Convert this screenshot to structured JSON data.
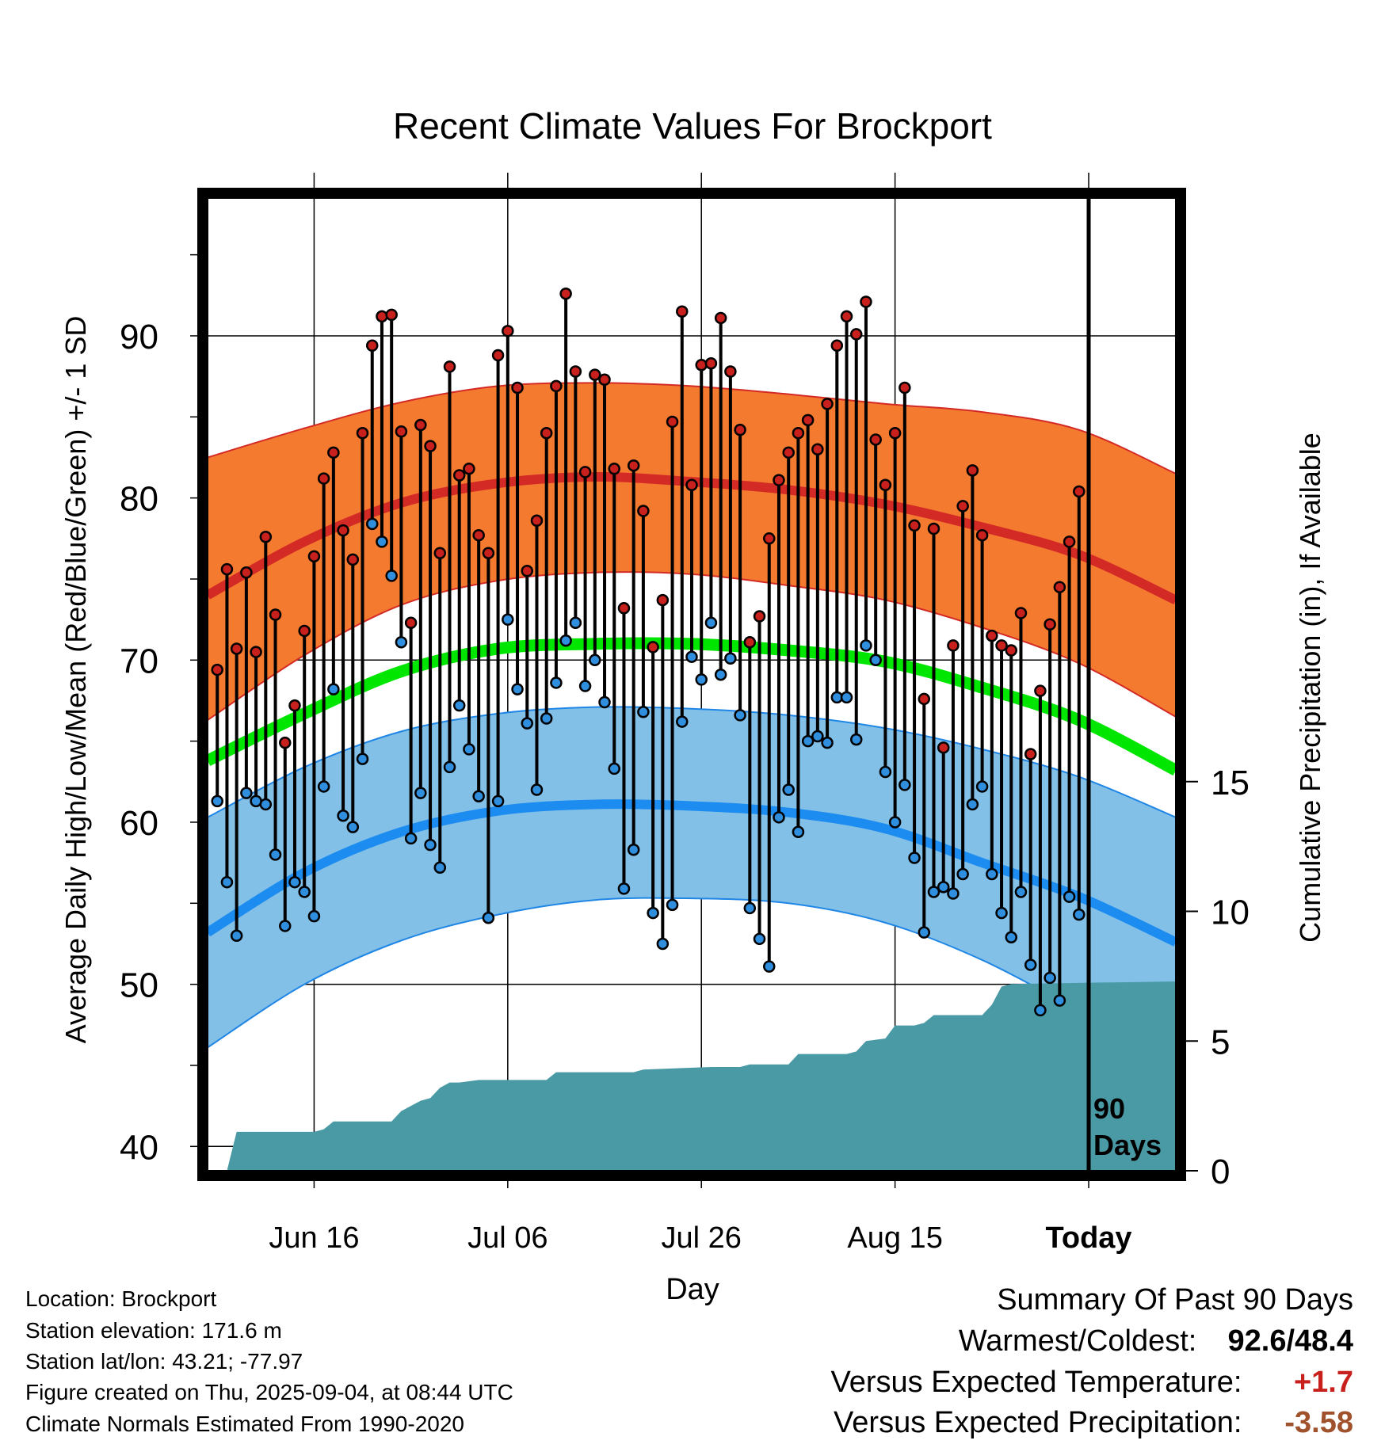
{
  "chart_data": {
    "type": "line",
    "title": "Recent Climate Values For Brockport",
    "xlabel": "Day",
    "ylabel": "Average Daily High/Low/Mean (Red/Blue/Green) +/- 1 SD",
    "ylabel_right": "Cumulative Precipitation (in), If Available",
    "ylim": [
      38.5,
      98.5
    ],
    "ylim_right": [
      0,
      37.5
    ],
    "yticks": [
      "40",
      "50",
      "60",
      "70",
      "80",
      "90"
    ],
    "yticks_right": [
      "0",
      "5",
      "10",
      "15"
    ],
    "xticks": [
      "Jun 16",
      "Jul 06",
      "Jul 26",
      "Aug 15",
      "Today"
    ],
    "xtick_days": [
      11,
      31,
      51,
      71,
      91
    ],
    "xlim": [
      0,
      100
    ],
    "today_marker": "90\nDays",
    "grid": true,
    "days": 90,
    "normals": {
      "day": [
        0,
        10,
        20,
        30,
        40,
        50,
        60,
        70,
        80,
        90,
        100
      ],
      "high": [
        74.0,
        77.3,
        79.7,
        80.9,
        81.3,
        81.0,
        80.5,
        79.6,
        78.2,
        76.5,
        73.7
      ],
      "high_upper": [
        82.5,
        84.3,
        85.9,
        86.9,
        87.1,
        86.9,
        86.4,
        85.8,
        85.3,
        84.2,
        81.5
      ],
      "high_lower": [
        66.3,
        70.3,
        73.4,
        74.9,
        75.4,
        75.3,
        74.6,
        73.7,
        72.0,
        69.8,
        66.5
      ],
      "mean": [
        63.8,
        66.7,
        69.3,
        70.7,
        71.0,
        71.0,
        70.6,
        69.9,
        68.3,
        66.3,
        63.2
      ],
      "low": [
        53.2,
        56.9,
        59.4,
        60.7,
        61.1,
        61.0,
        60.6,
        59.6,
        57.5,
        55.4,
        52.6
      ],
      "low_upper": [
        60.3,
        63.4,
        65.6,
        66.7,
        67.1,
        67.0,
        66.6,
        65.8,
        64.5,
        62.8,
        60.3
      ],
      "low_lower": [
        46.1,
        50.0,
        52.7,
        54.3,
        55.2,
        55.3,
        55.0,
        53.8,
        51.5,
        48.4,
        45.5
      ]
    },
    "series": [
      {
        "name": "High",
        "color": "#c8201c",
        "values": [
          69.4,
          75.6,
          70.7,
          75.4,
          70.5,
          77.6,
          72.8,
          64.9,
          67.2,
          71.8,
          76.4,
          81.2,
          82.8,
          78.0,
          76.2,
          84.0,
          89.4,
          91.2,
          91.3,
          84.1,
          72.3,
          84.5,
          83.2,
          76.6,
          88.1,
          81.4,
          81.8,
          77.7,
          76.6,
          88.8,
          90.3,
          86.8,
          75.5,
          78.6,
          84.0,
          86.9,
          92.6,
          87.8,
          81.6,
          87.6,
          87.3,
          81.8,
          73.2,
          82.0,
          79.2,
          70.8,
          73.7,
          84.7,
          91.5,
          80.8,
          88.2,
          88.3,
          91.1,
          87.8,
          84.2,
          71.1,
          72.7,
          77.5,
          81.1,
          82.8,
          84.0,
          84.8,
          83.0,
          85.8,
          89.4,
          91.2,
          90.1,
          92.1,
          83.6,
          80.8,
          84.0,
          86.8,
          78.3,
          67.6,
          78.1,
          64.6,
          70.9,
          79.5,
          81.7,
          77.7,
          71.5,
          70.9,
          70.6,
          72.9,
          64.2,
          68.1,
          72.2,
          74.5,
          77.3,
          80.4
        ]
      },
      {
        "name": "Low",
        "color": "#2f8fde",
        "values": [
          61.3,
          56.3,
          53.0,
          61.8,
          61.3,
          61.1,
          58.0,
          53.6,
          56.3,
          55.7,
          54.2,
          62.2,
          68.2,
          60.4,
          59.7,
          63.9,
          78.4,
          77.3,
          75.2,
          71.1,
          59.0,
          61.8,
          58.6,
          57.2,
          63.4,
          67.2,
          64.5,
          61.6,
          54.1,
          61.3,
          72.5,
          68.2,
          66.1,
          62.0,
          66.4,
          68.6,
          71.2,
          72.3,
          68.4,
          70.0,
          67.4,
          63.3,
          55.9,
          58.3,
          66.8,
          54.4,
          52.5,
          54.9,
          66.2,
          70.2,
          68.8,
          72.3,
          69.1,
          70.1,
          66.6,
          54.7,
          52.8,
          51.1,
          60.3,
          62.0,
          59.4,
          65.0,
          65.3,
          64.9,
          67.7,
          67.7,
          65.1,
          70.9,
          70.0,
          63.1,
          60.0,
          62.3,
          57.8,
          53.2,
          55.7,
          56.0,
          55.6,
          56.8,
          61.1,
          62.2,
          56.8,
          54.4,
          52.9,
          55.7,
          51.2,
          48.4,
          50.4,
          49.0,
          55.4,
          54.3
        ]
      },
      {
        "name": "Cumulative Precipitation",
        "color": "#4a9aa5",
        "x": [
          0,
          2,
          3,
          11,
          12,
          13,
          19,
          20,
          21,
          22,
          23,
          24,
          25,
          26,
          28,
          30,
          32,
          35,
          36,
          44,
          45,
          52,
          55,
          56,
          60,
          61,
          66,
          67,
          68,
          70,
          71,
          72,
          73,
          74,
          75,
          80,
          81,
          82,
          83,
          100
        ],
        "values": [
          0.0,
          0.0,
          1.5,
          1.5,
          1.6,
          1.9,
          1.9,
          2.3,
          2.5,
          2.7,
          2.8,
          3.2,
          3.4,
          3.4,
          3.5,
          3.5,
          3.5,
          3.5,
          3.8,
          3.8,
          3.9,
          4.0,
          4.0,
          4.1,
          4.1,
          4.5,
          4.5,
          4.6,
          5.0,
          5.1,
          5.6,
          5.6,
          5.6,
          5.7,
          6.0,
          6.0,
          6.4,
          7.1,
          7.2,
          7.3
        ]
      }
    ]
  },
  "info": {
    "location": "Location: Brockport",
    "elevation": "Station elevation: 171.6 m",
    "latlon": "Station lat/lon: 43.21; -77.97",
    "created": "Figure created on Thu, 2025-09-04, at 08:44 UTC",
    "normals": "Climate Normals Estimated From 1990-2020"
  },
  "summary": {
    "title": "Summary Of Past 90 Days",
    "warm_cold_label": "Warmest/Coldest:",
    "warmest": "92.6",
    "separator": "/",
    "coldest": "48.4",
    "temp_label": "Versus Expected Temperature:",
    "temp_value": "+1.7",
    "temp_color": "#c8201c",
    "precip_label": "Versus Expected Precipitation:",
    "precip_value": "-3.58",
    "precip_color": "#a0522d"
  },
  "colors": {
    "high_band": "#f47a30",
    "high_line": "#d42a26",
    "low_band": "#82c0e8",
    "low_line": "#1c8cf0",
    "mean_line": "#00e600",
    "precip_fill": "#4a9aa5"
  }
}
